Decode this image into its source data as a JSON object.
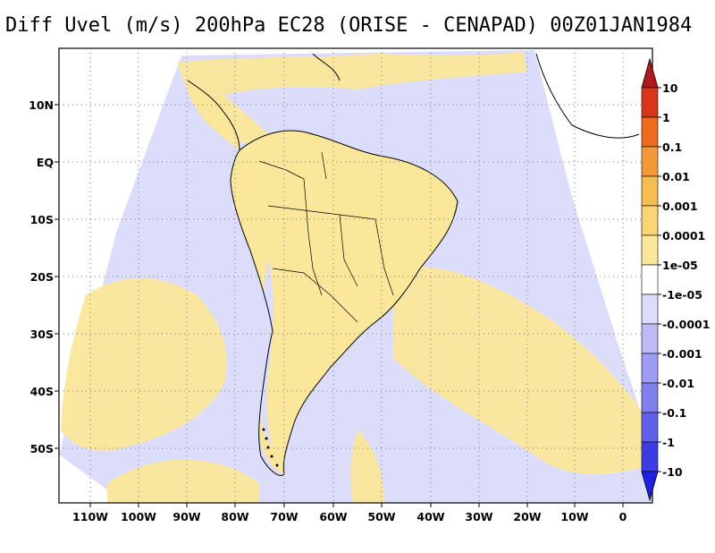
{
  "title": "Diff Uvel (m/s) 200hPa EC28 (ORISE - CENAPAD) 00Z01JAN1984",
  "map": {
    "lat_labels": [
      "10N",
      "EQ",
      "10S",
      "20S",
      "30S",
      "40S",
      "50S"
    ],
    "lon_labels": [
      "110W",
      "100W",
      "90W",
      "80W",
      "70W",
      "60W",
      "50W",
      "40W",
      "30W",
      "20W",
      "10W",
      "0"
    ],
    "projection": "polar stereographic",
    "region": "South America",
    "coastlines": true,
    "country_borders": true,
    "grid": "dotted"
  },
  "colorbar": {
    "labels": [
      "10",
      "1",
      "0.1",
      "0.01",
      "0.001",
      "0.0001",
      "1e-05",
      "-1e-05",
      "-0.0001",
      "-0.001",
      "-0.01",
      "-0.1",
      "-1",
      "-10"
    ],
    "colors": [
      "#b11a1a",
      "#d8361a",
      "#ee6a1e",
      "#f29a3a",
      "#f5bc52",
      "#f8d572",
      "#fbe79a",
      "#ffffff",
      "#dcdcfb",
      "#bbbaf7",
      "#9c9cf2",
      "#7f7fee",
      "#6060ea",
      "#3c3ce6",
      "#1f1fe4"
    ],
    "orientation": "vertical",
    "placement": "right"
  },
  "field_colors": {
    "positive_small": "#fbe79a",
    "positive_medium": "#f8d572",
    "negative_small": "#dcdcfb",
    "negative_medium": "#c8c8f6"
  }
}
